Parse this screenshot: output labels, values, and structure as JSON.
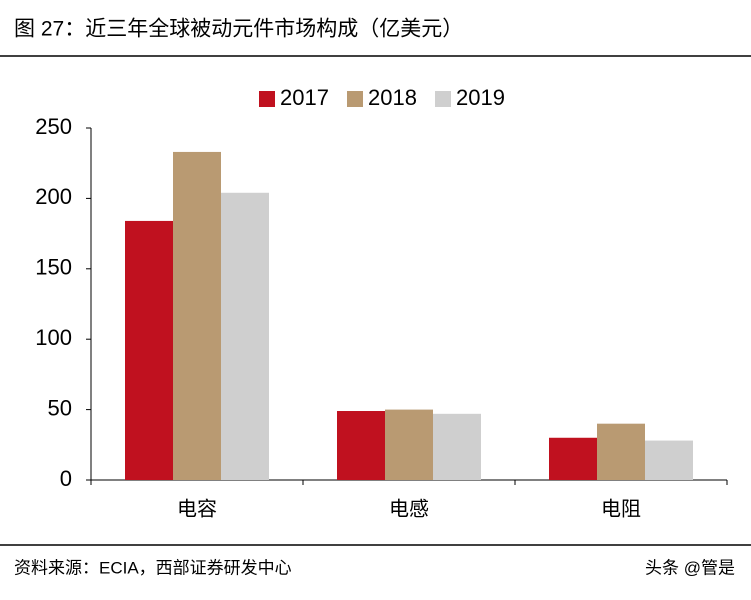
{
  "chart_data": {
    "type": "bar",
    "title": "图 27：近三年全球被动元件市场构成（亿美元）",
    "categories": [
      "电容",
      "电感",
      "电阻"
    ],
    "series": [
      {
        "name": "2017",
        "color": "#c0111f",
        "values": [
          184,
          49,
          30
        ]
      },
      {
        "name": "2018",
        "color": "#b99a72",
        "values": [
          233,
          50,
          40
        ]
      },
      {
        "name": "2019",
        "color": "#cfcfcf",
        "values": [
          204,
          47,
          28
        ]
      }
    ],
    "ylim": [
      0,
      250
    ],
    "yticks": [
      0,
      50,
      100,
      150,
      200,
      250
    ],
    "grid": false,
    "legend": "top",
    "source": "资料来源：ECIA，西部证券研发中心",
    "watermark": "头条 @管是"
  }
}
